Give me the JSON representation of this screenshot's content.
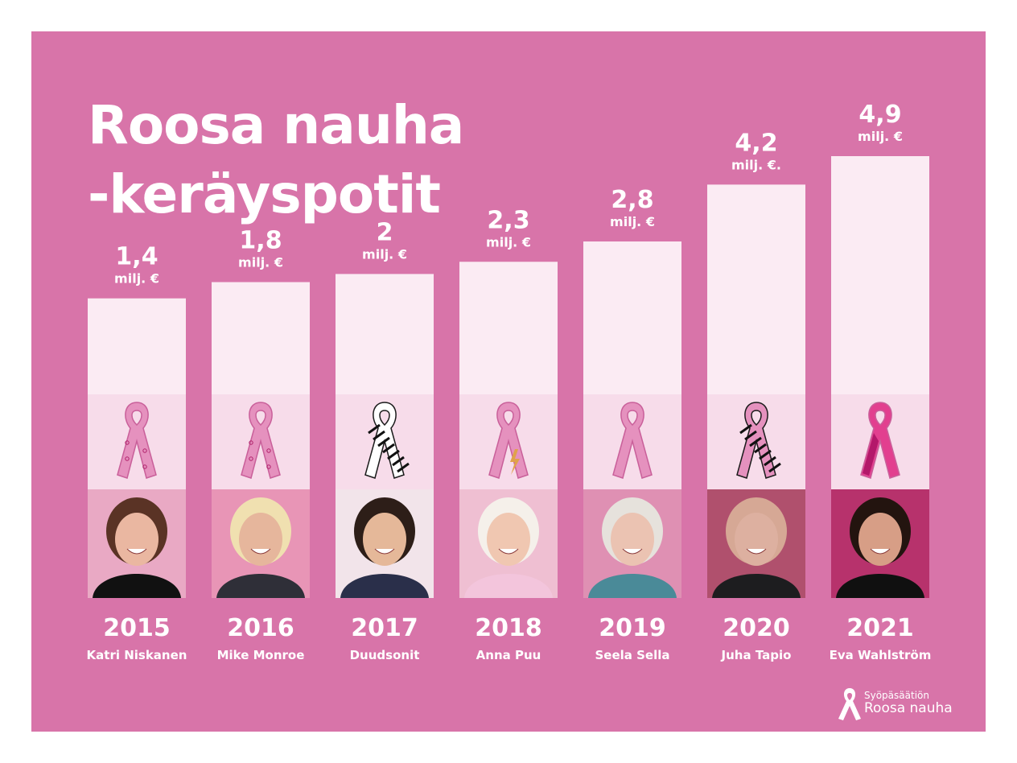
{
  "colors": {
    "background": "#d874a9",
    "bar": "#fbebf3",
    "ribbon_area": "#f7dcea",
    "text": "#ffffff",
    "ribbon": "#e591be",
    "ribbon_dark": "#2b2b2b"
  },
  "header": {
    "title_line1": "Roosa nauha",
    "title_line2": "-keräyspotit"
  },
  "logo": {
    "small": "Syöpäsäätiön",
    "big": "Roosa nauha",
    "icon": "pink-ribbon-icon"
  },
  "chart_data": {
    "type": "bar",
    "unit": "milj. €",
    "categories": [
      "2015",
      "2016",
      "2017",
      "2018",
      "2019",
      "2020",
      "2021"
    ],
    "values": [
      1.4,
      1.8,
      2,
      2.3,
      2.8,
      4.2,
      4.9
    ],
    "value_labels": [
      "1,4",
      "1,8",
      "2",
      "2,3",
      "2,8",
      "4,2",
      "4,9"
    ],
    "unit_labels": [
      "milj. €",
      "milj. €",
      "milj. €",
      "milj. €",
      "milj. €",
      "milj. €.",
      "milj. €"
    ],
    "names": [
      "Katri Niskanen",
      "Mike Monroe",
      "Duudsonit",
      "Anna Puu",
      "Seela Sella",
      "Juha Tapio",
      "Eva Wahlström"
    ],
    "ribbon_styles": [
      "sketch",
      "stars-hearts",
      "black-pattern",
      "lightning",
      "plain",
      "zebra",
      "magenta-stripes"
    ],
    "photo_tones": [
      "#e9a9c4",
      "#e895b6",
      "#f2e4ea",
      "#efbfd2",
      "#df90b3",
      "#b0506d",
      "#b7326c"
    ],
    "photo_skin": [
      "#eab7a1",
      "#e6b69c",
      "#e5b899",
      "#f0c7b1",
      "#ebc3b2",
      "#ddb0a0",
      "#d79e86"
    ],
    "photo_hair": [
      "#5a3325",
      "#f0e0b0",
      "#2d1e18",
      "#f5f0ea",
      "#e6e2dc",
      "#d6a895",
      "#23140f"
    ],
    "photo_cloth": [
      "#111111",
      "#2f2f38",
      "#2a2f4a",
      "#f3c5dc",
      "#4a8a98",
      "#1d1d1f",
      "#101010"
    ],
    "grid": false,
    "legend": "none"
  }
}
